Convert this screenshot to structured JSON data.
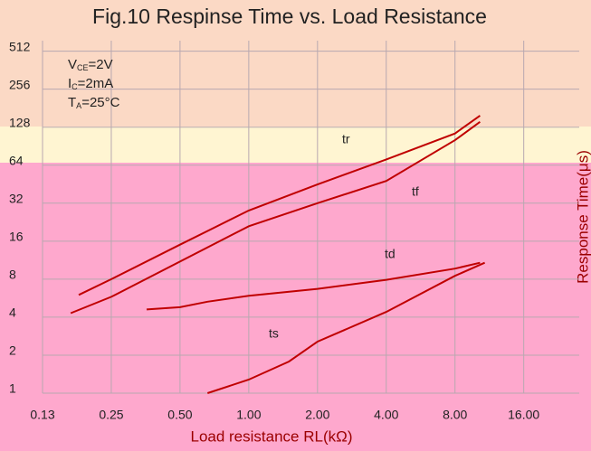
{
  "chart_data": {
    "type": "line",
    "title": "Fig.10  Respinse Time vs. Load Resistance",
    "x_label": "Load resistance RL(kΩ)",
    "y_label": "Response Time(μs)",
    "log_x": true,
    "log_y": true,
    "grid": true,
    "xlim": [
      0.125,
      28
    ],
    "ylim": [
      1,
      620
    ],
    "xticks": [
      {
        "value": 0.125,
        "label": "0.13"
      },
      0.25,
      {
        "value": 0.5,
        "label": "0.50"
      },
      {
        "value": 1,
        "label": "1.00"
      },
      {
        "value": 2,
        "label": "2.00"
      },
      {
        "value": 4,
        "label": "4.00"
      },
      {
        "value": 8,
        "label": "8.00"
      },
      {
        "value": 16,
        "label": "16.00"
      }
    ],
    "yticks": [
      1,
      2,
      4,
      8,
      16,
      32,
      64,
      128,
      256,
      512
    ],
    "annotations": [
      {
        "main": "V",
        "sub": "CE",
        "tail": "=2V"
      },
      {
        "main": "I",
        "sub": "C",
        "tail": "=2mA"
      },
      {
        "main": "T",
        "sub": "A",
        "tail": "=25°C"
      }
    ],
    "series": [
      {
        "name": "tr",
        "color": "#c00000",
        "x": [
          0.18,
          0.25,
          0.5,
          1,
          2,
          4,
          8,
          10.3
        ],
        "values": [
          6,
          8,
          15,
          28,
          45,
          71,
          114,
          158
        ]
      },
      {
        "name": "tf",
        "color": "#c00000",
        "x": [
          0.166,
          0.25,
          1,
          2,
          4,
          8,
          10.3
        ],
        "values": [
          4.3,
          5.8,
          21,
          32,
          48,
          101,
          141
        ]
      },
      {
        "name": "td",
        "color": "#c00000",
        "x": [
          0.357,
          0.5,
          0.66,
          1,
          2,
          4,
          8,
          10.3
        ],
        "values": [
          4.6,
          4.8,
          5.3,
          5.9,
          6.7,
          7.9,
          9.7,
          10.8
        ]
      },
      {
        "name": "ts",
        "color": "#c00000",
        "x": [
          0.66,
          1,
          1.5,
          2,
          4,
          8,
          10.8
        ],
        "values": [
          1,
          1.28,
          1.78,
          2.56,
          4.4,
          8.5,
          10.8
        ]
      }
    ]
  }
}
